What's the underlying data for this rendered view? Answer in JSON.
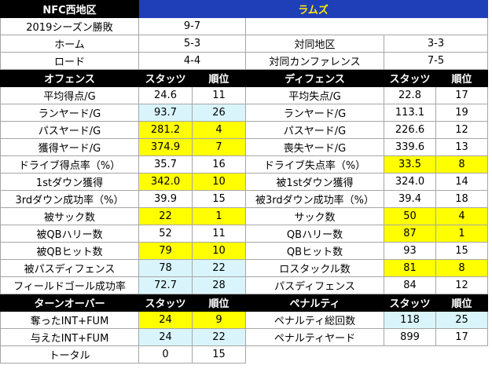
{
  "header": {
    "division": "NFC西地区",
    "team": "ラムズ"
  },
  "record": {
    "label": "2019シーズン勝敗",
    "value": "9-7",
    "home": {
      "label": "ホーム",
      "value": "5-3"
    },
    "road": {
      "label": "ロード",
      "value": "4-4"
    },
    "division": {
      "label": "対同地区",
      "value": "3-3"
    },
    "conference": {
      "label": "対同カンファレンス",
      "value": "7-5"
    }
  },
  "offense_header": {
    "title": "オフェンス",
    "stats": "スタッツ",
    "rank": "順位"
  },
  "defense_header": {
    "title": "ディフェンス",
    "stats": "スタッツ",
    "rank": "順位"
  },
  "rows": [
    {
      "off": {
        "label": "平均得点/G",
        "stat": "24.6",
        "rank": "11",
        "hl": ""
      },
      "def": {
        "label": "平均失点/G",
        "stat": "22.8",
        "rank": "17",
        "hl": ""
      }
    },
    {
      "off": {
        "label": "ランヤード/G",
        "stat": "93.7",
        "rank": "26",
        "hl": "c"
      },
      "def": {
        "label": "ランヤード/G",
        "stat": "113.1",
        "rank": "19",
        "hl": ""
      }
    },
    {
      "off": {
        "label": "パスヤード/G",
        "stat": "281.2",
        "rank": "4",
        "hl": "y"
      },
      "def": {
        "label": "パスヤード/G",
        "stat": "226.6",
        "rank": "12",
        "hl": ""
      }
    },
    {
      "off": {
        "label": "獲得ヤード/G",
        "stat": "374.9",
        "rank": "7",
        "hl": "y"
      },
      "def": {
        "label": "喪失ヤード/G",
        "stat": "339.6",
        "rank": "13",
        "hl": ""
      }
    },
    {
      "off": {
        "label": "ドライブ得点率（%）",
        "stat": "35.7",
        "rank": "16",
        "hl": ""
      },
      "def": {
        "label": "ドライブ失点率（%）",
        "stat": "33.5",
        "rank": "8",
        "hl": "y"
      }
    },
    {
      "off": {
        "label": "1stダウン獲得",
        "stat": "342.0",
        "rank": "10",
        "hl": "y"
      },
      "def": {
        "label": "被1stダウン獲得",
        "stat": "324.0",
        "rank": "14",
        "hl": ""
      }
    },
    {
      "off": {
        "label": "3rdダウン成功率（%）",
        "stat": "39.9",
        "rank": "15",
        "hl": ""
      },
      "def": {
        "label": "被3rdダウン成功率（%）",
        "stat": "39.4",
        "rank": "18",
        "hl": ""
      }
    },
    {
      "off": {
        "label": "被サック数",
        "stat": "22",
        "rank": "1",
        "hl": "y"
      },
      "def": {
        "label": "サック数",
        "stat": "50",
        "rank": "4",
        "hl": "y"
      }
    },
    {
      "off": {
        "label": "被QBハリー数",
        "stat": "52",
        "rank": "11",
        "hl": ""
      },
      "def": {
        "label": "QBハリー数",
        "stat": "87",
        "rank": "1",
        "hl": "y"
      }
    },
    {
      "off": {
        "label": "被QBヒット数",
        "stat": "79",
        "rank": "10",
        "hl": "y"
      },
      "def": {
        "label": "QBヒット数",
        "stat": "93",
        "rank": "15",
        "hl": ""
      }
    },
    {
      "off": {
        "label": "被パスディフェンス",
        "stat": "78",
        "rank": "22",
        "hl": "c"
      },
      "def": {
        "label": "ロスタックル数",
        "stat": "81",
        "rank": "8",
        "hl": "y"
      }
    },
    {
      "off": {
        "label": "フィールドゴール成功率",
        "stat": "72.7",
        "rank": "28",
        "hl": "c"
      },
      "def": {
        "label": "パスディフェンス",
        "stat": "84",
        "rank": "12",
        "hl": ""
      }
    }
  ],
  "turnover_header": {
    "title": "ターンオーバー",
    "stats": "スタッツ",
    "rank": "順位"
  },
  "penalty_header": {
    "title": "ペナルティ",
    "stats": "スタッツ",
    "rank": "順位"
  },
  "turnover_rows": [
    {
      "label": "奪ったINT+FUM",
      "stat": "24",
      "rank": "9",
      "hl": "y"
    },
    {
      "label": "与えたINT+FUM",
      "stat": "24",
      "rank": "22",
      "hl": "c"
    },
    {
      "label": "トータル",
      "stat": "0",
      "rank": "15",
      "hl": ""
    }
  ],
  "penalty_rows": [
    {
      "label": "ペナルティ総回数",
      "stat": "118",
      "rank": "25",
      "hl": "c"
    },
    {
      "label": "ペナルティヤード",
      "stat": "899",
      "rank": "17",
      "hl": ""
    }
  ],
  "colors": {
    "header_bg": "#000000",
    "team_bg": "#1f3fb8",
    "team_text": "#ffea00",
    "highlight_good": "#ffff00",
    "highlight_bad": "#d9f5fb"
  }
}
